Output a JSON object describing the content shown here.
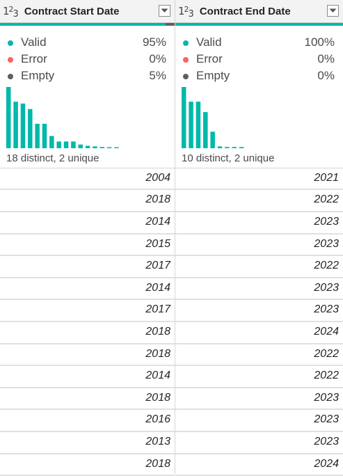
{
  "colors": {
    "valid": "#01b8aa",
    "error": "#fd625e",
    "empty": "#5f5f5f",
    "bar": "#01b8aa"
  },
  "columns": [
    {
      "type_icon": "integer-type-icon",
      "type_glyph": [
        "1",
        "2",
        "3"
      ],
      "title": "Contract Start Date",
      "quality_fraction": {
        "valid": 0.95,
        "empty": 0.05
      },
      "stats": [
        {
          "label": "Valid",
          "pct": "95%"
        },
        {
          "label": "Error",
          "pct": "0%"
        },
        {
          "label": "Empty",
          "pct": "5%"
        }
      ],
      "histogram": [
        10,
        7.6,
        7.3,
        6.4,
        4.0,
        4.0,
        2.0,
        1.1,
        1.1,
        1.1,
        0.6,
        0.4,
        0.3,
        0.2,
        0.15,
        0.15
      ],
      "summary": "18 distinct, 2 unique",
      "values": [
        "2004",
        "2018",
        "2014",
        "2015",
        "2017",
        "2014",
        "2017",
        "2018",
        "2018",
        "2014",
        "2018",
        "2016",
        "2013",
        "2018"
      ]
    },
    {
      "type_icon": "integer-type-icon",
      "type_glyph": [
        "1",
        "2",
        "3"
      ],
      "title": "Contract End Date",
      "quality_fraction": {
        "valid": 1.0,
        "empty": 0.0
      },
      "stats": [
        {
          "label": "Valid",
          "pct": "100%"
        },
        {
          "label": "Error",
          "pct": "0%"
        },
        {
          "label": "Empty",
          "pct": "0%"
        }
      ],
      "histogram": [
        10,
        7.6,
        7.6,
        5.9,
        2.7,
        0.3,
        0.2,
        0.2,
        0.2
      ],
      "summary": "10 distinct, 2 unique",
      "values": [
        "2021",
        "2022",
        "2023",
        "2023",
        "2022",
        "2023",
        "2023",
        "2024",
        "2022",
        "2022",
        "2023",
        "2023",
        "2023",
        "2024"
      ]
    }
  ]
}
